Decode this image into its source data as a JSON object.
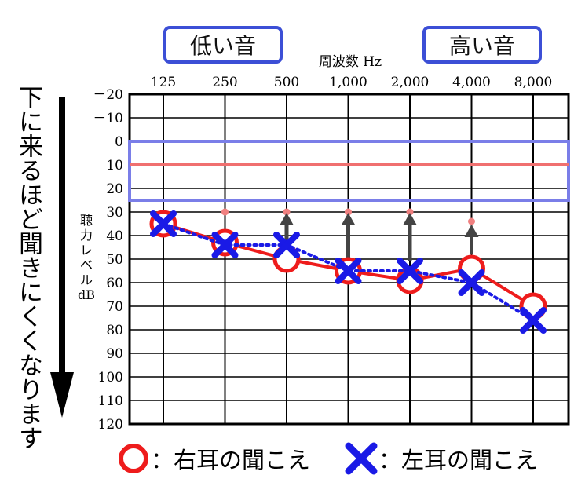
{
  "low_box": "低い音",
  "high_box": "高い音",
  "side_text": "下に来るほど聞きにくくなります",
  "legend": {
    "right": "：右耳の聞こえ",
    "left": "：左耳の聞こえ"
  },
  "colors": {
    "right": "#ee1c1c",
    "left": "#1a1ae6",
    "box": "#3c4fd6",
    "band_border": "#7a7ee8",
    "band_line": "#f07070",
    "dot": "#f08080",
    "arrow": "#444444"
  },
  "chart_data": {
    "type": "line",
    "title": "周波数 Hz",
    "xlabel": "周波数 Hz",
    "ylabel": "聴力レベル dB",
    "categories": [
      "125",
      "250",
      "500",
      "1,000",
      "2,000",
      "4,000",
      "8,000"
    ],
    "y_ticks": [
      "－20",
      "－10",
      "0",
      "10",
      "20",
      "30",
      "40",
      "50",
      "60",
      "70",
      "80",
      "90",
      "100",
      "110",
      "120"
    ],
    "y_values": [
      -20,
      -10,
      0,
      10,
      20,
      30,
      40,
      50,
      60,
      70,
      80,
      90,
      100,
      110,
      120
    ],
    "ylim": [
      -20,
      120
    ],
    "y_inverted": true,
    "ylabel_lines": [
      "聴",
      "力",
      "レ",
      "ベ",
      "ル",
      "dB"
    ],
    "normal_range": [
      0,
      25
    ],
    "normal_line": 10,
    "series": [
      {
        "name": "右耳の聞こえ",
        "marker": "circle",
        "line": "solid",
        "values": [
          35,
          43,
          50,
          55,
          59,
          54,
          70
        ]
      },
      {
        "name": "左耳の聞こえ",
        "marker": "cross",
        "line": "dotted",
        "values": [
          35,
          44,
          44,
          55,
          55,
          60,
          76
        ]
      }
    ],
    "improvement_targets": [
      null,
      30,
      30,
      30,
      30,
      34,
      null
    ],
    "arrows": [
      {
        "category": "500",
        "from": 43,
        "to": 31
      },
      {
        "category": "1,000",
        "from": 51,
        "to": 31
      },
      {
        "category": "2,000",
        "from": 51,
        "to": 31
      },
      {
        "category": "4,000",
        "from": 48,
        "to": 36
      }
    ]
  }
}
